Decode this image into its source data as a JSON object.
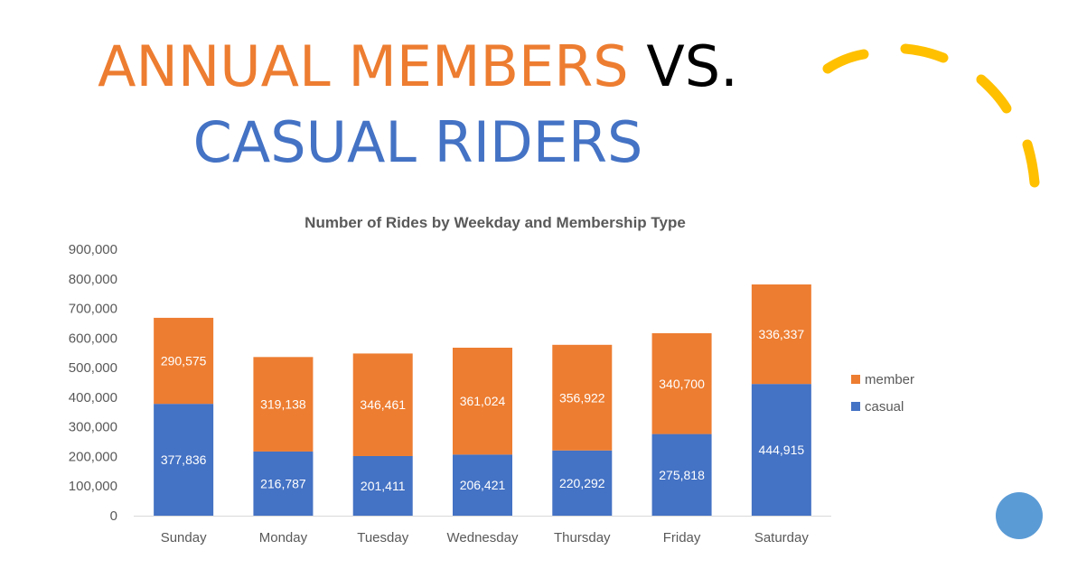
{
  "slide": {
    "title_part1": "ANNUAL MEMBERS",
    "title_part2": "VS.",
    "title_line2": "CASUAL RIDERS"
  },
  "colors": {
    "accent_orange": "#ED7D31",
    "accent_blue": "#4472C4",
    "deco_yellow": "#FFC000",
    "deco_circle": "#5B9BD5"
  },
  "chart_data": {
    "type": "bar",
    "stacked": true,
    "title": "Number of Rides by Weekday and Membership Type",
    "categories": [
      "Sunday",
      "Monday",
      "Tuesday",
      "Wednesday",
      "Thursday",
      "Friday",
      "Saturday"
    ],
    "series": [
      {
        "name": "casual",
        "color": "#4472C4",
        "values": [
          377836,
          216787,
          201411,
          206421,
          220292,
          275818,
          444915
        ],
        "labels": [
          "377,836",
          "216,787",
          "201,411",
          "206,421",
          "220,292",
          "275,818",
          "444,915"
        ]
      },
      {
        "name": "member",
        "color": "#ED7D31",
        "values": [
          290575,
          319138,
          346461,
          361024,
          356922,
          340700,
          336337
        ],
        "labels": [
          "290,575",
          "319,138",
          "346,461",
          "361,024",
          "356,922",
          "340,700",
          "336,337"
        ]
      }
    ],
    "ylim": [
      0,
      900000
    ],
    "yticks": [
      0,
      100000,
      200000,
      300000,
      400000,
      500000,
      600000,
      700000,
      800000,
      900000
    ],
    "ytick_labels": [
      "0",
      "100,000",
      "200,000",
      "300,000",
      "400,000",
      "500,000",
      "600,000",
      "700,000",
      "800,000",
      "900,000"
    ],
    "grid": false,
    "legend_position": "right",
    "legend": [
      {
        "name": "member",
        "color": "#ED7D31"
      },
      {
        "name": "casual",
        "color": "#4472C4"
      }
    ]
  }
}
